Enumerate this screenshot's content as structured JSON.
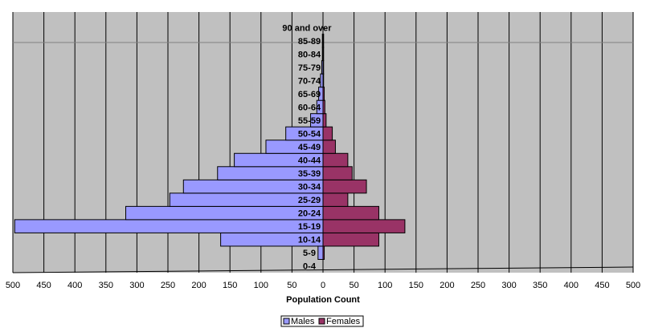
{
  "chart_data": {
    "type": "bar",
    "orientation": "horizontal",
    "layout": "population-pyramid",
    "categories": [
      "0-4",
      "5-9",
      "10-14",
      "15-19",
      "20-24",
      "25-29",
      "30-34",
      "35-39",
      "40-44",
      "45-49",
      "50-54",
      "55-59",
      "60-64",
      "65-69",
      "70-74",
      "75-79",
      "80-84",
      "85-89",
      "90 and over"
    ],
    "series": [
      {
        "name": "Males",
        "color": "#9999ff",
        "values": [
          0,
          8,
          165,
          497,
          318,
          247,
          225,
          170,
          143,
          92,
          60,
          20,
          10,
          7,
          4,
          2,
          1,
          1,
          0
        ]
      },
      {
        "name": "Females",
        "color": "#993366",
        "values": [
          0,
          2,
          90,
          132,
          90,
          40,
          70,
          47,
          40,
          20,
          15,
          5,
          3,
          2,
          1,
          1,
          1,
          1,
          0
        ]
      }
    ],
    "xlabel": "Population Count",
    "ylabel": "",
    "xlim": [
      -500,
      500
    ],
    "x_tick_values": [
      -500,
      -450,
      -400,
      -350,
      -300,
      -250,
      -200,
      -150,
      -100,
      -50,
      0,
      50,
      100,
      150,
      200,
      250,
      300,
      350,
      400,
      450,
      500
    ],
    "x_tick_labels": [
      "500",
      "450",
      "400",
      "350",
      "300",
      "250",
      "200",
      "150",
      "100",
      "50",
      "0",
      "50",
      "100",
      "150",
      "200",
      "250",
      "300",
      "350",
      "400",
      "450",
      "500"
    ],
    "grid": true,
    "legend": "bottom-center",
    "plot_background": "#c0c0c0"
  }
}
